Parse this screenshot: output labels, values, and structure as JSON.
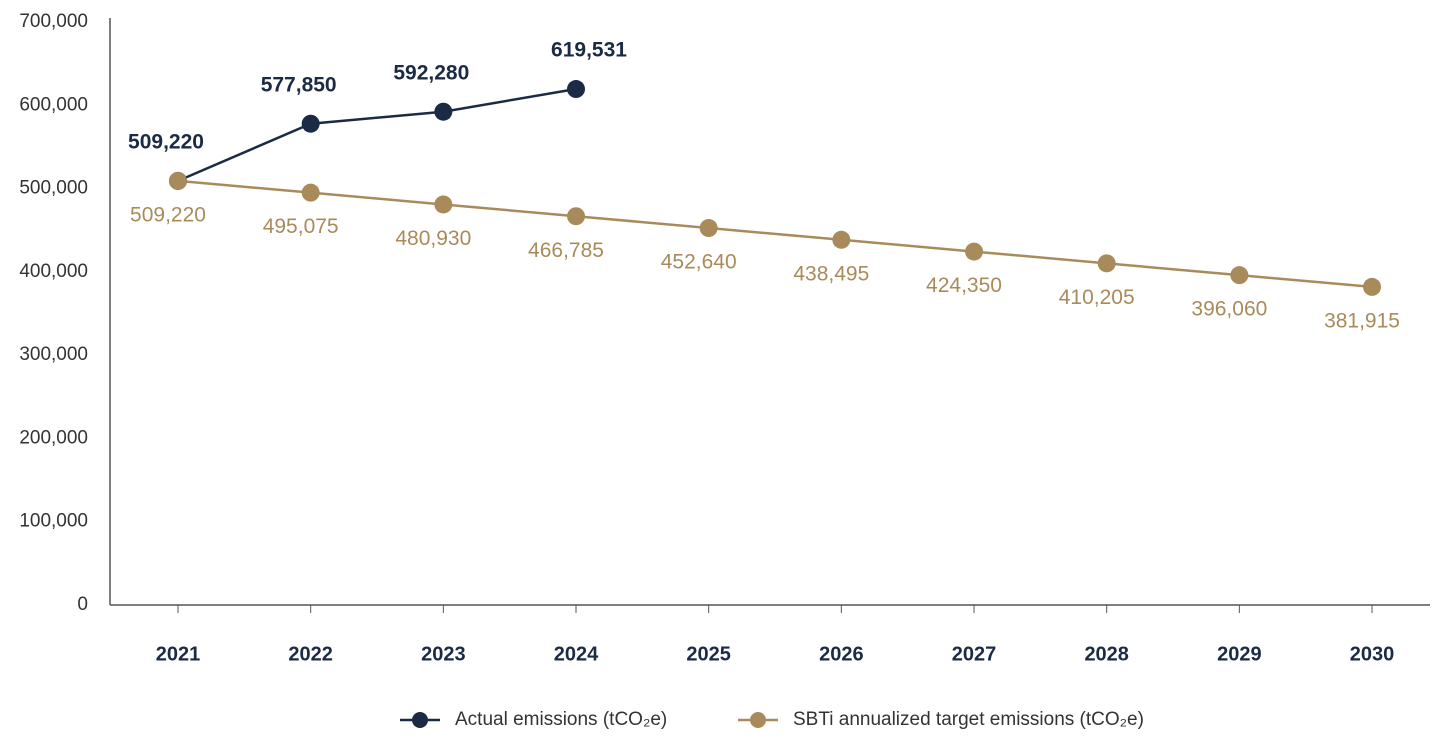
{
  "chart_data": {
    "type": "line",
    "categories": [
      "2021",
      "2022",
      "2023",
      "2024",
      "2025",
      "2026",
      "2027",
      "2028",
      "2029",
      "2030"
    ],
    "series": [
      {
        "name": "Actual emissions (tCO₂e)",
        "color": "#1c2b45",
        "values": [
          509220,
          577850,
          592280,
          619531,
          null,
          null,
          null,
          null,
          null,
          null
        ],
        "value_labels": [
          "509,220",
          "577,850",
          "592,280",
          "619,531",
          null,
          null,
          null,
          null,
          null,
          null
        ]
      },
      {
        "name": "SBTi annualized target emissions (tCO₂e)",
        "color": "#a98b5b",
        "values": [
          509220,
          495075,
          480930,
          466785,
          452640,
          438495,
          424350,
          410205,
          396060,
          381915
        ],
        "value_labels": [
          "509,220",
          "495,075",
          "480,930",
          "466,785",
          "452,640",
          "438,495",
          "424,350",
          "410,205",
          "396,060",
          "381,915"
        ]
      }
    ],
    "ylim": [
      0,
      700000
    ],
    "yticks": [
      0,
      {
        "value": 100000,
        "label": "100,000"
      },
      {
        "value": 200000,
        "label": "200,000"
      },
      {
        "value": 300000,
        "label": "300,000"
      },
      {
        "value": 400000,
        "label": "400,000"
      },
      {
        "value": 500000,
        "label": "500,000"
      },
      {
        "value": 600000,
        "label": "600,000"
      },
      {
        "value": 700000,
        "label": "700,000"
      }
    ],
    "grid": false,
    "legend": "bottom"
  }
}
